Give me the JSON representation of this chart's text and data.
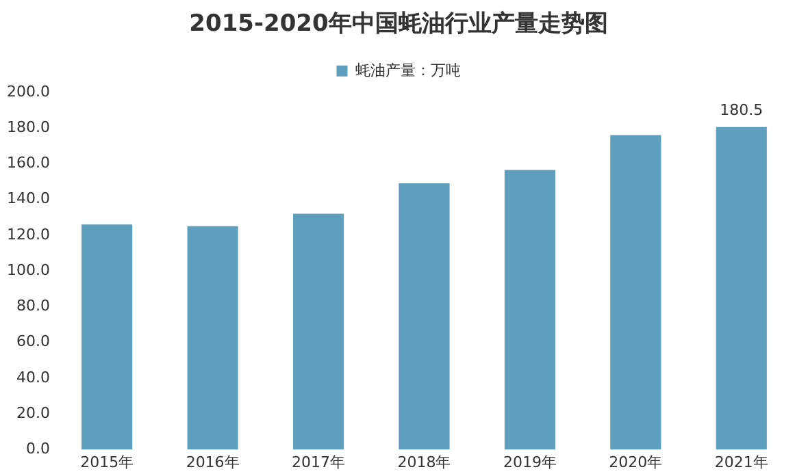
{
  "chart_data": {
    "type": "bar",
    "title": "2015-2020年中国蚝油行业产量走势图",
    "categories": [
      "2015年",
      "2016年",
      "2017年",
      "2018年",
      "2019年",
      "2020年",
      "2021年"
    ],
    "series": [
      {
        "name": "蚝油产量：万吨",
        "color": "#5e9fbd",
        "values": [
          126,
          125,
          132,
          149,
          156.5,
          176,
          180.5
        ],
        "value_labels": [
          null,
          null,
          null,
          null,
          null,
          null,
          "180.5"
        ]
      }
    ],
    "ylim": [
      0,
      200
    ],
    "yticks": [
      {
        "value": 0,
        "label": "0.0"
      },
      {
        "value": 20,
        "label": "20.0"
      },
      {
        "value": 40,
        "label": "40.0"
      },
      {
        "value": 60,
        "label": "60.0"
      },
      {
        "value": 80,
        "label": "80.0"
      },
      {
        "value": 100,
        "label": "100.0"
      },
      {
        "value": 120,
        "label": "120.0"
      },
      {
        "value": 140,
        "label": "140.0"
      },
      {
        "value": 160,
        "label": "160.0"
      },
      {
        "value": 180,
        "label": "180.0"
      },
      {
        "value": 200,
        "label": "200.0"
      }
    ],
    "grid": false,
    "legend": "top"
  }
}
